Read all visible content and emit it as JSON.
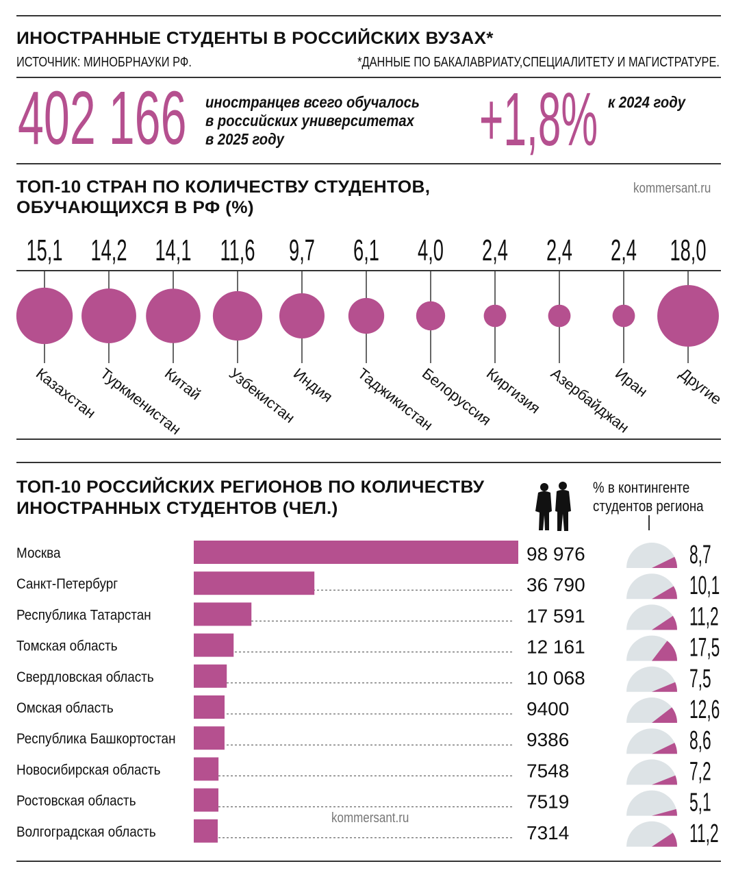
{
  "header": {
    "title": "ИНОСТРАННЫЕ СТУДЕНТЫ  В РОССИЙСКИХ ВУЗАХ*",
    "source": "ИСТОЧНИК: МИНОБРНАУКИ РФ.",
    "footnote": "*ДАННЫЕ ПО БАКАЛАВРИАТУ,СПЕЦИАЛИТЕТУ И МАГИСТРАТУРЕ."
  },
  "summary": {
    "total": "402 166",
    "total_text": [
      "иностранцев всего обучалось",
      "в российских университетах",
      "в 2025 году"
    ],
    "growth": "+1,8%",
    "growth_text": "к 2024 году"
  },
  "colors": {
    "accent": "#b5508f",
    "gauge_bg": "#dde3e6"
  },
  "chart_data": [
    {
      "type": "bubble",
      "title": "ТОП-10 СТРАН ПО КОЛИЧЕСТВУ СТУДЕНТОВ, ОБУЧАЮЩИХСЯ В РФ (%)",
      "title_lines": [
        "ТОП-10 СТРАН ПО КОЛИЧЕСТВУ СТУДЕНТОВ,",
        "ОБУЧАЮЩИХСЯ В РФ (%)"
      ],
      "watermark": "kommersant.ru",
      "categories": [
        "Казахстан",
        "Туркменистан",
        "Китай",
        "Узбекистан",
        "Индия",
        "Таджикистан",
        "Белоруссия",
        "Киргизия",
        "Азербайджан",
        "Иран",
        "Другие"
      ],
      "values": [
        15.1,
        14.2,
        14.1,
        11.6,
        9.7,
        6.1,
        4.0,
        2.4,
        2.4,
        2.4,
        18.0
      ],
      "labels": [
        "15,1",
        "14,2",
        "14,1",
        "11,6",
        "9,7",
        "6,1",
        "4,0",
        "2,4",
        "2,4",
        "2,4",
        "18,0"
      ]
    },
    {
      "type": "bar",
      "title": "ТОП-10 РОССИЙСКИХ РЕГИОНОВ ПО КОЛИЧЕСТВУ ИНОСТРАННЫХ СТУДЕНТОВ (ЧЕЛ.)",
      "title_lines": [
        "ТОП-10 РОССИЙСКИХ РЕГИОНОВ ПО КОЛИЧЕСТВУ",
        "ИНОСТРАННЫХ СТУДЕНТОВ (ЧЕЛ.)"
      ],
      "share_label": [
        "% в контингенте",
        "студентов региона"
      ],
      "watermark": "kommersant.ru",
      "categories": [
        "Москва",
        "Санкт-Петербург",
        "Республика Татарстан",
        "Томская область",
        "Свердловская область",
        "Омская область",
        "Республика Башкортостан",
        "Новосибирская область",
        "Ростовская область",
        "Волгоградская область"
      ],
      "values": [
        98976,
        36790,
        17591,
        12161,
        10068,
        9400,
        9386,
        7548,
        7519,
        7314
      ],
      "labels": [
        "98 976",
        "36 790",
        "17 591",
        "12 161",
        "10 068",
        "9400",
        "9386",
        "7548",
        "7519",
        "7314"
      ],
      "share": [
        8.7,
        10.1,
        11.2,
        17.5,
        7.5,
        12.6,
        8.6,
        7.2,
        5.1,
        11.2
      ],
      "share_labels": [
        "8,7",
        "10,1",
        "11,2",
        "17,5",
        "7,5",
        "12,6",
        "8,6",
        "7,2",
        "5,1",
        "11,2"
      ]
    }
  ]
}
